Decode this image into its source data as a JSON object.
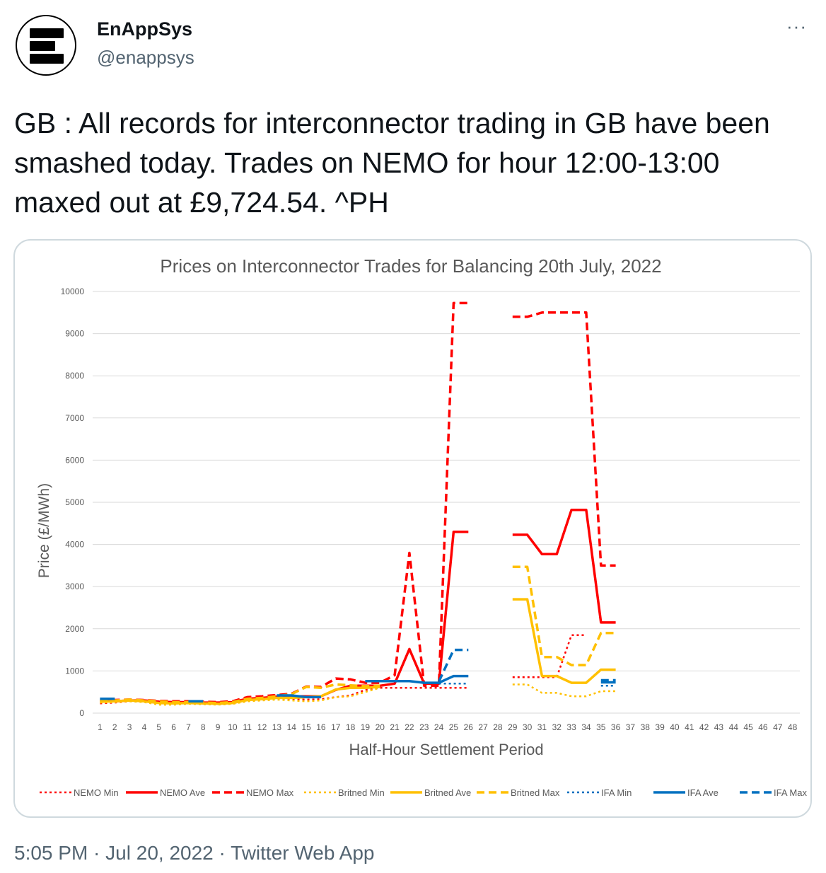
{
  "account": {
    "display_name": "EnAppSys",
    "handle": "@enappsys",
    "avatar_icon": "enappsys-logo-icon",
    "more_label": "···"
  },
  "tweet": {
    "text": "GB : All records for interconnector trading in GB have been smashed today. Trades on NEMO for hour 12:00-13:00 maxed out at £9,724.54. ^PH",
    "time": "5:05 PM",
    "separator": " · ",
    "date": "Jul 20, 2022",
    "source": "Twitter Web App"
  },
  "chart_data": {
    "type": "line",
    "title": "Prices on Interconnector Trades for Balancing 20th July, 2022",
    "xlabel": "Half-Hour Settlement Period",
    "ylabel": "Price (£/MWh)",
    "ylim": [
      0,
      10000
    ],
    "yticks": [
      0,
      1000,
      2000,
      3000,
      4000,
      5000,
      6000,
      7000,
      8000,
      9000,
      10000
    ],
    "categories": [
      "1",
      "2",
      "3",
      "4",
      "5",
      "6",
      "7",
      "8",
      "9",
      "10",
      "11",
      "12",
      "13",
      "14",
      "15",
      "16",
      "17",
      "18",
      "19",
      "20",
      "21",
      "22",
      "23",
      "24",
      "25",
      "26",
      "27",
      "28",
      "29",
      "30",
      "31",
      "32",
      "33",
      "34",
      "35",
      "36",
      "37",
      "38",
      "39",
      "40",
      "41",
      "42",
      "43",
      "44",
      "45",
      "46",
      "47",
      "48"
    ],
    "grid": true,
    "legend_position": "bottom",
    "series": [
      {
        "name": "NEMO Min",
        "color": "#ff0000",
        "dash": "dotted",
        "values": [
          230,
          250,
          280,
          280,
          260,
          250,
          260,
          230,
          220,
          230,
          300,
          320,
          350,
          330,
          320,
          330,
          380,
          420,
          550,
          600,
          600,
          600,
          600,
          600,
          600,
          600,
          null,
          null,
          850,
          850,
          850,
          850,
          1850,
          1850,
          null,
          null,
          null,
          null,
          null,
          null,
          null,
          null,
          null,
          null,
          null,
          null,
          null,
          null
        ]
      },
      {
        "name": "NEMO Ave",
        "color": "#ff0000",
        "dash": "solid",
        "values": [
          280,
          280,
          300,
          300,
          270,
          260,
          260,
          250,
          250,
          260,
          340,
          360,
          390,
          400,
          400,
          400,
          550,
          650,
          650,
          650,
          700,
          1520,
          700,
          700,
          4300,
          4300,
          null,
          null,
          4230,
          4230,
          3770,
          3770,
          4820,
          4820,
          2150,
          2150,
          null,
          null,
          null,
          null,
          null,
          null,
          null,
          null,
          null,
          null,
          null,
          null
        ]
      },
      {
        "name": "NEMO Max",
        "color": "#ff0000",
        "dash": "dashed",
        "values": [
          300,
          310,
          320,
          310,
          290,
          280,
          280,
          270,
          260,
          280,
          380,
          400,
          430,
          460,
          630,
          620,
          820,
          800,
          720,
          720,
          900,
          3800,
          650,
          650,
          9724.54,
          9724.54,
          null,
          null,
          9400,
          9400,
          9500,
          9500,
          9500,
          9500,
          3500,
          3500,
          null,
          null,
          null,
          null,
          null,
          null,
          null,
          null,
          null,
          null,
          null,
          null
        ]
      },
      {
        "name": "Britned Min",
        "color": "#ffc000",
        "dash": "dotted",
        "values": [
          250,
          260,
          280,
          260,
          200,
          200,
          220,
          210,
          200,
          220,
          280,
          300,
          320,
          300,
          280,
          300,
          380,
          400,
          500,
          600,
          null,
          null,
          null,
          null,
          null,
          null,
          null,
          null,
          680,
          680,
          480,
          480,
          400,
          400,
          520,
          520,
          null,
          null,
          null,
          null,
          null,
          null,
          null,
          null,
          null,
          null,
          null,
          null
        ]
      },
      {
        "name": "Britned Ave",
        "color": "#ffc000",
        "dash": "solid",
        "values": [
          270,
          280,
          300,
          280,
          240,
          230,
          240,
          230,
          220,
          240,
          310,
          330,
          360,
          360,
          380,
          400,
          560,
          600,
          600,
          620,
          null,
          null,
          null,
          null,
          null,
          null,
          null,
          null,
          2700,
          2700,
          880,
          880,
          720,
          720,
          1030,
          1030,
          null,
          null,
          null,
          null,
          null,
          null,
          null,
          null,
          null,
          null,
          null,
          null
        ]
      },
      {
        "name": "Britned Max",
        "color": "#ffc000",
        "dash": "dashed",
        "values": [
          290,
          300,
          320,
          300,
          280,
          260,
          260,
          250,
          240,
          260,
          340,
          360,
          400,
          450,
          620,
          600,
          680,
          660,
          640,
          650,
          null,
          null,
          null,
          null,
          null,
          null,
          null,
          null,
          3470,
          3470,
          1330,
          1330,
          1140,
          1140,
          1900,
          1900,
          null,
          null,
          null,
          null,
          null,
          null,
          null,
          null,
          null,
          null,
          null,
          null
        ]
      },
      {
        "name": "IFA Min",
        "color": "#0070c0",
        "dash": "dotted",
        "values": [
          null,
          null,
          null,
          null,
          null,
          null,
          null,
          null,
          null,
          null,
          null,
          null,
          null,
          null,
          null,
          null,
          null,
          null,
          null,
          null,
          null,
          null,
          null,
          700,
          700,
          700,
          null,
          null,
          null,
          null,
          null,
          null,
          null,
          null,
          650,
          650,
          null,
          null,
          null,
          null,
          null,
          null,
          null,
          null,
          null,
          null,
          null,
          null
        ]
      },
      {
        "name": "IFA Ave",
        "color": "#0070c0",
        "dash": "solid",
        "values": [
          340,
          340,
          null,
          null,
          null,
          null,
          280,
          280,
          null,
          null,
          null,
          null,
          420,
          420,
          380,
          380,
          null,
          null,
          760,
          760,
          760,
          760,
          720,
          720,
          880,
          880,
          null,
          null,
          null,
          null,
          null,
          null,
          null,
          null,
          730,
          730,
          null,
          null,
          null,
          null,
          null,
          null,
          null,
          null,
          null,
          null,
          null,
          null
        ]
      },
      {
        "name": "IFA Max",
        "color": "#0070c0",
        "dash": "dashed",
        "values": [
          null,
          null,
          null,
          null,
          null,
          null,
          null,
          null,
          null,
          null,
          null,
          null,
          null,
          null,
          null,
          null,
          null,
          null,
          null,
          null,
          null,
          null,
          null,
          750,
          1500,
          1500,
          null,
          null,
          null,
          null,
          null,
          null,
          null,
          null,
          780,
          780,
          null,
          null,
          null,
          null,
          null,
          null,
          null,
          null,
          null,
          null,
          null,
          null
        ]
      }
    ]
  }
}
